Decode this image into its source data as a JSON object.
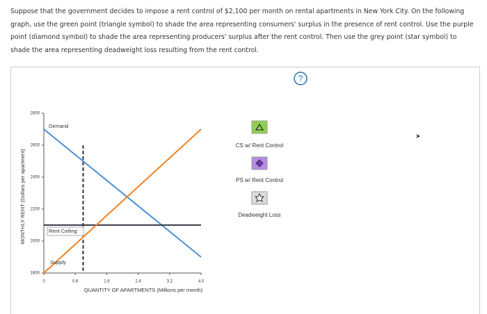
{
  "question": "Suppose that the government decides to impose a rent control of $2,100 per month on rental apartments in New York City. On the following graph, use the green point (triangle symbol) to shade the area representing consumers' surplus in the presence of rent control. Use the purple point (diamond symbol) to shade the area representing producers' surplus after the rent control. Then use the grey point (star symbol) to shade the area representing deadweight loss resulting from the rent control.",
  "help_button": "?",
  "palette": [
    "CS w/ Rent Control",
    "PS w/ Rent Control",
    "Deadweight Loss"
  ],
  "chart_data": {
    "type": "line",
    "x_label": "QUANTITY OF APARTMENTS (Millions per month)",
    "y_label": "MONTHLY RENT (Dollars per apartment)",
    "x": [
      0,
      4
    ],
    "series": [
      {
        "name": "Demand",
        "color": "#4a8fd6",
        "values": [
          2700,
          1900
        ]
      },
      {
        "name": "Rent Ceiling",
        "color": "#3c3c4c",
        "values": [
          2100,
          2100
        ]
      },
      {
        "name": "Supply",
        "color": "#ef8222",
        "values": [
          1800,
          2700
        ]
      }
    ],
    "guide": {
      "x": [
        1,
        1
      ],
      "y": [
        2600,
        1800
      ],
      "color": "#333333"
    },
    "xlim": [
      0,
      4
    ],
    "xticks": [
      0,
      0.8,
      1.6,
      2.4,
      3.2,
      {
        "value": 4,
        "label": "4.0"
      }
    ],
    "ylim": [
      1800,
      2800
    ],
    "yticks": [
      1800,
      2000,
      2200,
      2400,
      2600,
      2800
    ]
  }
}
